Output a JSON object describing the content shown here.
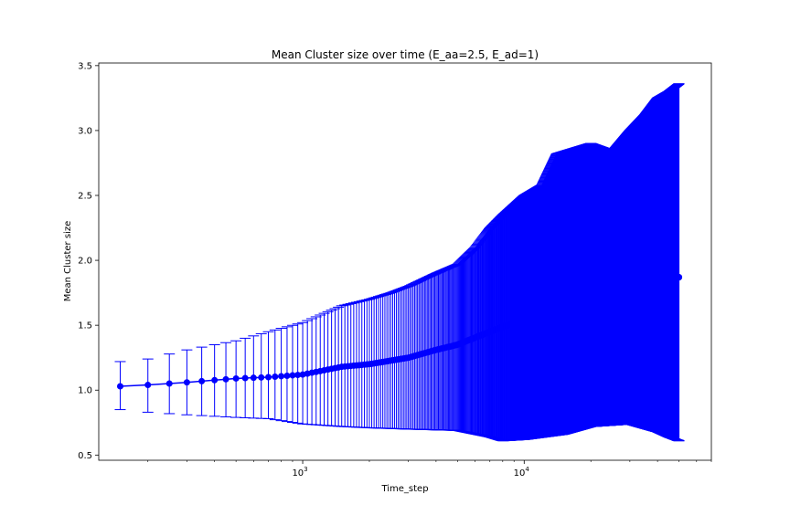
{
  "chart_data": {
    "type": "scatter",
    "title": "Mean Cluster size over time (E_aa=2.5, E_ad=1)",
    "xlabel": "Time_step",
    "ylabel": "Mean Cluster size",
    "x_scale": "log",
    "xlim": [
      120,
      70000
    ],
    "ylim": [
      0.46,
      3.52
    ],
    "x_ticks": [
      {
        "value": 1000,
        "base": "10",
        "exp": "3"
      },
      {
        "value": 10000,
        "base": "10",
        "exp": "4"
      }
    ],
    "y_ticks": [
      {
        "value": 0.5,
        "label": "0.5"
      },
      {
        "value": 1.0,
        "label": "1.0"
      },
      {
        "value": 1.5,
        "label": "1.5"
      },
      {
        "value": 2.0,
        "label": "2.0"
      },
      {
        "value": 2.5,
        "label": "2.5"
      },
      {
        "value": 3.0,
        "label": "3.0"
      },
      {
        "value": 3.5,
        "label": "3.5"
      }
    ],
    "grid": false,
    "legend": "none",
    "color": "#0000ff",
    "series": [
      {
        "x_start": 150,
        "x_end": 50000,
        "x_step": 50,
        "mean_knots": [
          [
            150,
            1.03
          ],
          [
            200,
            1.04
          ],
          [
            300,
            1.06
          ],
          [
            500,
            1.09
          ],
          [
            700,
            1.1
          ],
          [
            1000,
            1.12
          ],
          [
            1500,
            1.18
          ],
          [
            2000,
            1.2
          ],
          [
            3000,
            1.25
          ],
          [
            4000,
            1.31
          ],
          [
            5000,
            1.35
          ],
          [
            7000,
            1.45
          ],
          [
            10000,
            1.55
          ],
          [
            15000,
            1.65
          ],
          [
            20000,
            1.72
          ],
          [
            30000,
            1.78
          ],
          [
            40000,
            1.82
          ],
          [
            50000,
            1.87
          ]
        ],
        "upper_knots": [
          [
            150,
            1.22
          ],
          [
            200,
            1.24
          ],
          [
            300,
            1.31
          ],
          [
            400,
            1.35
          ],
          [
            500,
            1.38
          ],
          [
            700,
            1.45
          ],
          [
            1000,
            1.52
          ],
          [
            1500,
            1.65
          ],
          [
            2000,
            1.7
          ],
          [
            2500,
            1.75
          ],
          [
            3000,
            1.8
          ],
          [
            4000,
            1.9
          ],
          [
            5000,
            1.97
          ],
          [
            6000,
            2.1
          ],
          [
            7000,
            2.25
          ],
          [
            8000,
            2.35
          ],
          [
            10000,
            2.5
          ],
          [
            12000,
            2.58
          ],
          [
            14000,
            2.82
          ],
          [
            16000,
            2.85
          ],
          [
            20000,
            2.9
          ],
          [
            25000,
            2.84
          ],
          [
            30000,
            3.0
          ],
          [
            35000,
            3.12
          ],
          [
            40000,
            3.25
          ],
          [
            45000,
            3.3
          ],
          [
            50000,
            3.36
          ]
        ],
        "lower_knots": [
          [
            150,
            0.85
          ],
          [
            200,
            0.83
          ],
          [
            300,
            0.81
          ],
          [
            500,
            0.79
          ],
          [
            700,
            0.78
          ],
          [
            1000,
            0.74
          ],
          [
            1500,
            0.72
          ],
          [
            2000,
            0.71
          ],
          [
            3000,
            0.7
          ],
          [
            5000,
            0.69
          ],
          [
            7000,
            0.64
          ],
          [
            8000,
            0.61
          ],
          [
            10000,
            0.62
          ],
          [
            15000,
            0.66
          ],
          [
            20000,
            0.72
          ],
          [
            30000,
            0.74
          ],
          [
            40000,
            0.68
          ],
          [
            45000,
            0.64
          ],
          [
            50000,
            0.61
          ]
        ]
      }
    ]
  }
}
